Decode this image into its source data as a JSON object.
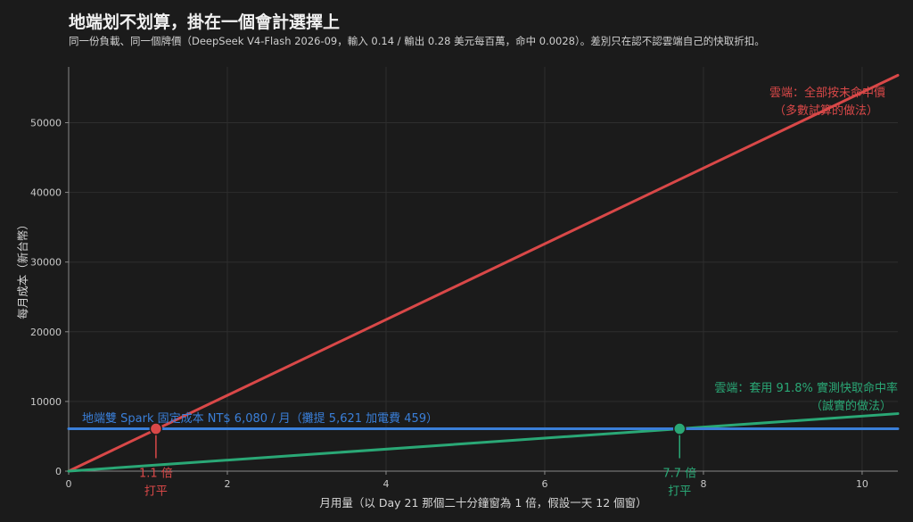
{
  "header": {
    "title": "地端划不划算，掛在一個會計選擇上",
    "subtitle": "同一份負載、同一個牌價（DeepSeek V4-Flash 2026-09，輸入 0.14 / 輸出 0.28 美元每百萬，命中 0.0028）。差別只在認不認雲端自己的快取折扣。"
  },
  "colors": {
    "background": "#1b1b1b",
    "grid": "#2e2e2e",
    "red": "#d94848",
    "green": "#2aa876",
    "blue": "#3a7fd9"
  },
  "chart_data": {
    "type": "line",
    "title": "地端划不划算，掛在一個會計選擇上",
    "xlabel": "月用量（以 Day 21 那個二十分鐘窗為 1 倍，假設一天 12 個窗）",
    "ylabel": "每月成本（新台幣）",
    "xlim": [
      0,
      10.45
    ],
    "ylim": [
      0,
      58000
    ],
    "xticks": [
      0,
      2,
      4,
      6,
      8,
      10
    ],
    "yticks": [
      0,
      10000,
      20000,
      30000,
      40000,
      50000
    ],
    "grid": true,
    "series": [
      {
        "name": "雲端：全部按未命中價",
        "color": "#d94848",
        "x": [
          0,
          10.45
        ],
        "y": [
          0,
          56800
        ]
      },
      {
        "name": "雲端：套用 91.8% 實測快取命中率",
        "color": "#2aa876",
        "x": [
          0,
          10.45
        ],
        "y": [
          0,
          8250
        ]
      },
      {
        "name": "地端雙 Spark 固定成本 NT$ 6,080 / 月（攤提 5,621 加電費 459）",
        "color": "#3a7fd9",
        "x": [
          0,
          10.45
        ],
        "y": [
          6080,
          6080
        ]
      }
    ],
    "annotations": {
      "red_line_label": [
        "雲端：全部按未命中價",
        "（多數試算的做法）"
      ],
      "green_line_label": [
        "雲端：套用 91.8% 實測快取命中率",
        "（誠實的做法）"
      ],
      "blue_line_label": "地端雙 Spark 固定成本 NT$ 6,080 / 月（攤提 5,621 加電費 459）",
      "breakeven_red": {
        "x": 1.1,
        "y": 6080,
        "labels": [
          "1.1 倍",
          "打平"
        ]
      },
      "breakeven_green": {
        "x": 7.7,
        "y": 6080,
        "labels": [
          "7.7 倍",
          "打平"
        ]
      }
    }
  }
}
